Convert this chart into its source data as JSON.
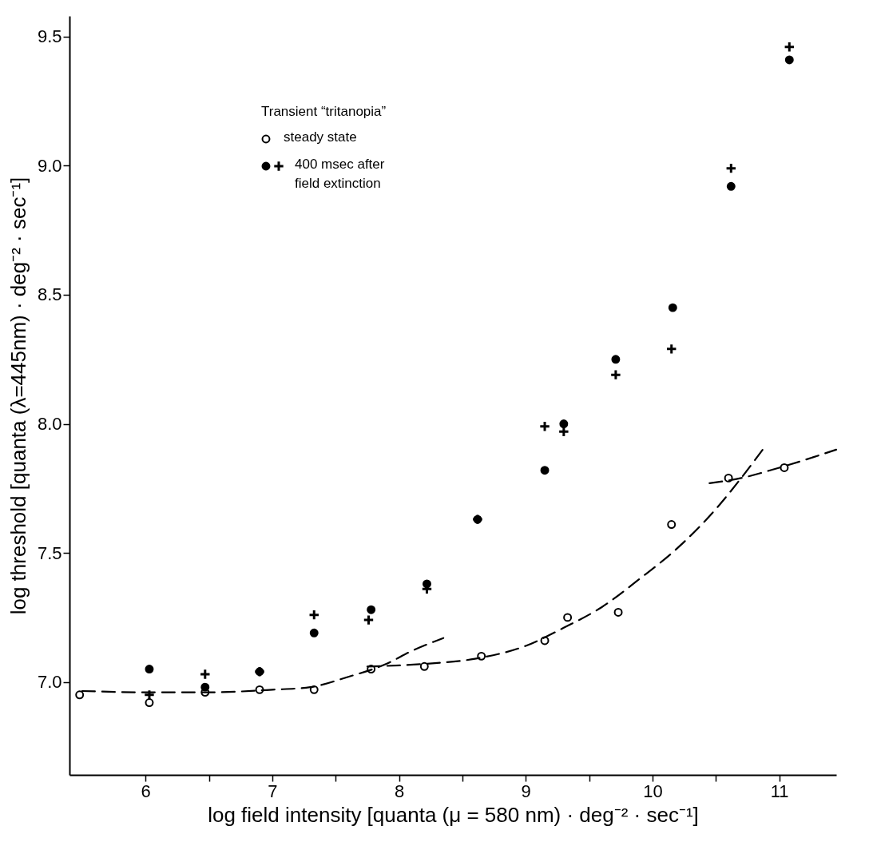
{
  "chart_data": {
    "type": "scatter",
    "xlabel": "log field intensity [quanta (μ = 580 nm) · deg⁻² · sec⁻¹]",
    "ylabel": "log threshold [quanta (λ=445nm) · deg⁻² · sec⁻¹]",
    "legend_title": "Transient “tritanopia”",
    "legend": "top left",
    "grid": false,
    "xlim": [
      5.4,
      11.45
    ],
    "xticks": [
      6,
      {
        "value": 6.5,
        "label": null
      },
      7,
      {
        "value": 7.5,
        "label": null
      },
      8,
      {
        "value": 8.5,
        "label": null
      },
      9,
      {
        "value": 9.5,
        "label": null
      },
      10,
      {
        "value": 10.5,
        "label": null
      },
      11
    ],
    "ylim": [
      6.64,
      9.58
    ],
    "yticks": [
      {
        "value": 7,
        "label": "7.0"
      },
      {
        "value": 7.5,
        "label": "7.5"
      },
      {
        "value": 8,
        "label": "8.0"
      },
      {
        "value": 8.5,
        "label": "8.5"
      },
      {
        "value": 9,
        "label": "9.0"
      },
      {
        "value": 9.5,
        "label": "9.5"
      }
    ],
    "series": [
      {
        "name": "steady state",
        "type": "scatter",
        "marker": "circle",
        "color": "#ffffff",
        "x": [
          5.48,
          6.03,
          6.47,
          6.9,
          7.33,
          7.78,
          8.2,
          8.65,
          9.15,
          9.33,
          9.73,
          10.15,
          10.6,
          11.04
        ],
        "values": [
          6.95,
          6.92,
          6.96,
          6.97,
          6.97,
          7.05,
          7.06,
          7.1,
          7.16,
          7.25,
          7.27,
          7.61,
          7.79,
          7.83
        ]
      },
      {
        "name": "400 msec  after field extinction",
        "type": "scatter",
        "marker": "circle",
        "color": "#000000",
        "x": [
          6.03,
          6.47,
          6.9,
          7.33,
          7.78,
          8.22,
          8.62,
          9.15,
          9.3,
          9.71,
          10.16,
          10.62,
          11.08
        ],
        "values": [
          7.05,
          6.98,
          7.04,
          7.19,
          7.28,
          7.38,
          7.63,
          7.82,
          8.0,
          8.25,
          8.45,
          8.92,
          9.41
        ]
      },
      {
        "type": "scatter",
        "marker": "cross",
        "color": "#000000",
        "x": [
          6.03,
          6.47,
          6.9,
          7.33,
          7.76,
          8.22,
          8.62,
          9.15,
          9.3,
          9.71,
          10.15,
          10.62,
          11.08
        ],
        "values": [
          6.95,
          7.03,
          7.04,
          7.26,
          7.24,
          7.36,
          7.63,
          7.99,
          7.97,
          8.19,
          8.29,
          8.99,
          9.46
        ]
      },
      {
        "type": "line",
        "line_style": "dashed",
        "color": "#000000",
        "x": [
          5.5,
          6,
          6.5,
          7,
          7.3,
          7.6,
          7.9,
          8.1,
          8.35
        ],
        "values": [
          6.965,
          6.96,
          6.96,
          6.97,
          6.98,
          7.02,
          7.07,
          7.12,
          7.17
        ]
      },
      {
        "type": "line",
        "line_style": "dashed",
        "color": "#000000",
        "x": [
          7.75,
          8.2,
          8.6,
          9,
          9.3,
          9.6,
          9.9,
          10.2,
          10.5,
          10.7,
          10.9
        ],
        "values": [
          7.06,
          7.07,
          7.09,
          7.14,
          7.21,
          7.29,
          7.4,
          7.52,
          7.67,
          7.79,
          7.92
        ]
      },
      {
        "type": "line",
        "line_style": "dashed",
        "color": "#000000",
        "x": [
          10.45,
          10.7,
          11,
          11.45
        ],
        "values": [
          7.77,
          7.79,
          7.83,
          7.9
        ]
      }
    ]
  }
}
